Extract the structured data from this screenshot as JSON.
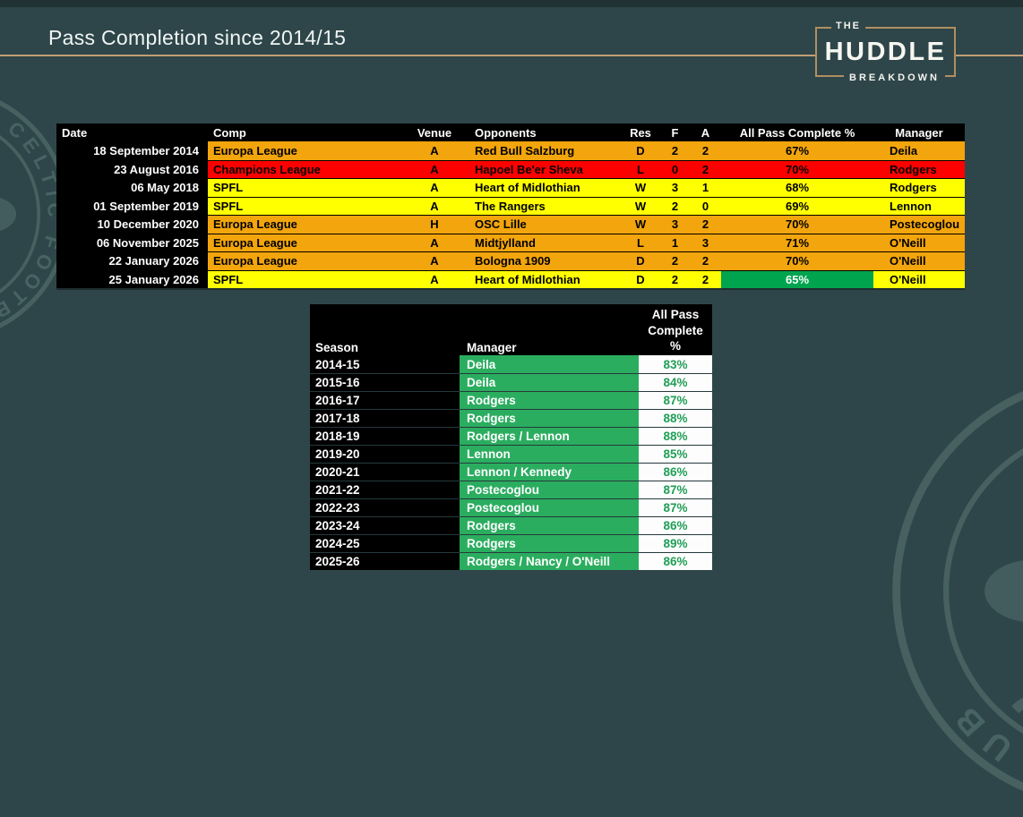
{
  "slide": {
    "title": "Pass Completion since 2014/15"
  },
  "logo": {
    "line1": "THE",
    "line2": "HUDDLE",
    "line3": "BREAKDOWN"
  },
  "watermark": {
    "crest_text": "THE CELTIC FOOTBALL CLUB"
  },
  "colors": {
    "background": "#2E4649",
    "gold_line": "#C09F76",
    "logo_gold": "#B08F60",
    "header_black": "#000000",
    "europa_amber": "#F2A50C",
    "champions_red": "#FF0000",
    "spfl_yellow": "#FFFF00",
    "highlight_green": "#00A44F",
    "season_green": "#2BAD60",
    "pct_text_green": "#1F9E56",
    "white": "#FFFFFF"
  },
  "chart_data": [
    {
      "type": "table",
      "columns": [
        "Date",
        "Comp",
        "Venue",
        "Opponents",
        "Res",
        "F",
        "A",
        "All Pass Complete %",
        "Manager"
      ],
      "rows": [
        {
          "date": "18 September 2014",
          "comp": "Europa League",
          "venue": "A",
          "opponents": "Red Bull Salzburg",
          "res": "D",
          "f": "2",
          "a": "2",
          "pass": "67%",
          "manager": "Deila",
          "color": "#F2A50C",
          "pass_highlight": false
        },
        {
          "date": "23 August 2016",
          "comp": "Champions League",
          "venue": "A",
          "opponents": "Hapoel Be'er Sheva",
          "res": "L",
          "f": "0",
          "a": "2",
          "pass": "70%",
          "manager": "Rodgers",
          "color": "#FF0000",
          "pass_highlight": false
        },
        {
          "date": "06 May 2018",
          "comp": "SPFL",
          "venue": "A",
          "opponents": "Heart of Midlothian",
          "res": "W",
          "f": "3",
          "a": "1",
          "pass": "68%",
          "manager": "Rodgers",
          "color": "#FFFF00",
          "pass_highlight": false
        },
        {
          "date": "01 September 2019",
          "comp": "SPFL",
          "venue": "A",
          "opponents": "The Rangers",
          "res": "W",
          "f": "2",
          "a": "0",
          "pass": "69%",
          "manager": "Lennon",
          "color": "#FFFF00",
          "pass_highlight": false
        },
        {
          "date": "10 December 2020",
          "comp": "Europa League",
          "venue": "H",
          "opponents": "OSC Lille",
          "res": "W",
          "f": "3",
          "a": "2",
          "pass": "70%",
          "manager": "Postecoglou",
          "color": "#F2A50C",
          "pass_highlight": false
        },
        {
          "date": "06 November 2025",
          "comp": "Europa League",
          "venue": "A",
          "opponents": "Midtjylland",
          "res": "L",
          "f": "1",
          "a": "3",
          "pass": "71%",
          "manager": "O'Neill",
          "color": "#F2A50C",
          "pass_highlight": false
        },
        {
          "date": "22 January 2026",
          "comp": "Europa League",
          "venue": "A",
          "opponents": "Bologna 1909",
          "res": "D",
          "f": "2",
          "a": "2",
          "pass": "70%",
          "manager": "O'Neill",
          "color": "#F2A50C",
          "pass_highlight": false
        },
        {
          "date": "25 January 2026",
          "comp": "SPFL",
          "venue": "A",
          "opponents": "Heart of Midlothian",
          "res": "D",
          "f": "2",
          "a": "2",
          "pass": "65%",
          "manager": "O'Neill",
          "color": "#FFFF00",
          "pass_highlight": true
        }
      ]
    },
    {
      "type": "table",
      "columns": [
        "Season",
        "Manager",
        "All Pass Complete %"
      ],
      "pass_header_display": "All Pass\nComplete\n%",
      "rows": [
        {
          "season": "2014-15",
          "manager": "Deila",
          "pass": "83%"
        },
        {
          "season": "2015-16",
          "manager": "Deila",
          "pass": "84%"
        },
        {
          "season": "2016-17",
          "manager": "Rodgers",
          "pass": "87%"
        },
        {
          "season": "2017-18",
          "manager": "Rodgers",
          "pass": "88%"
        },
        {
          "season": "2018-19",
          "manager": "Rodgers / Lennon",
          "pass": "88%"
        },
        {
          "season": "2019-20",
          "manager": "Lennon",
          "pass": "85%"
        },
        {
          "season": "2020-21",
          "manager": "Lennon / Kennedy",
          "pass": "86%"
        },
        {
          "season": "2021-22",
          "manager": "Postecoglou",
          "pass": "87%"
        },
        {
          "season": "2022-23",
          "manager": "Postecoglou",
          "pass": "87%"
        },
        {
          "season": "2023-24",
          "manager": "Rodgers",
          "pass": "86%"
        },
        {
          "season": "2024-25",
          "manager": "Rodgers",
          "pass": "89%"
        },
        {
          "season": "2025-26",
          "manager": "Rodgers / Nancy / O'Neill",
          "pass": "86%"
        }
      ]
    }
  ]
}
